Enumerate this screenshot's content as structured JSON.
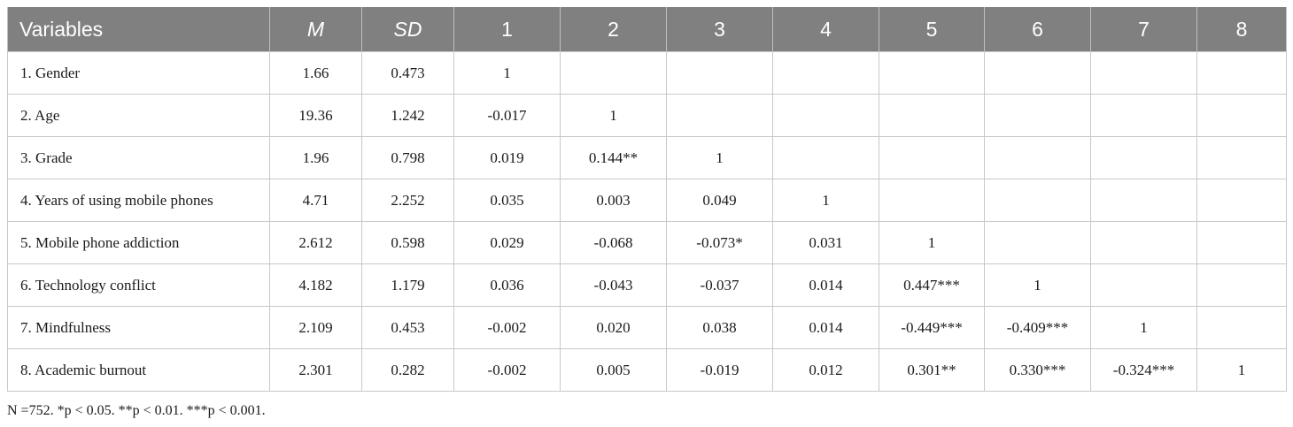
{
  "table": {
    "headers": [
      "Variables",
      "M",
      "SD",
      "1",
      "2",
      "3",
      "4",
      "5",
      "6",
      "7",
      "8"
    ],
    "rows": [
      [
        "1. Gender",
        "1.66",
        "0.473",
        "1",
        "",
        "",
        "",
        "",
        "",
        "",
        ""
      ],
      [
        "2. Age",
        "19.36",
        "1.242",
        "-0.017",
        "1",
        "",
        "",
        "",
        "",
        "",
        ""
      ],
      [
        "3. Grade",
        "1.96",
        "0.798",
        "0.019",
        "0.144**",
        "1",
        "",
        "",
        "",
        "",
        ""
      ],
      [
        "4. Years of using mobile phones",
        "4.71",
        "2.252",
        "0.035",
        "0.003",
        "0.049",
        "1",
        "",
        "",
        "",
        ""
      ],
      [
        "5. Mobile phone addiction",
        "2.612",
        "0.598",
        "0.029",
        "-0.068",
        "-0.073*",
        "0.031",
        "1",
        "",
        "",
        ""
      ],
      [
        "6. Technology conflict",
        "4.182",
        "1.179",
        "0.036",
        "-0.043",
        "-0.037",
        "0.014",
        "0.447***",
        "1",
        "",
        ""
      ],
      [
        "7. Mindfulness",
        "2.109",
        "0.453",
        "-0.002",
        "0.020",
        "0.038",
        "0.014",
        "-0.449***",
        "-0.409***",
        "1",
        ""
      ],
      [
        "8. Academic burnout",
        "2.301",
        "0.282",
        "-0.002",
        "0.005",
        "-0.019",
        "0.012",
        "0.301**",
        "0.330***",
        "-0.324***",
        "1"
      ]
    ]
  },
  "note": "N =752. *p < 0.05. **p < 0.01. ***p < 0.001.",
  "colors": {
    "header_background": "#808080",
    "header_text": "#ffffff",
    "grid_lines": "#c8c8c8"
  }
}
